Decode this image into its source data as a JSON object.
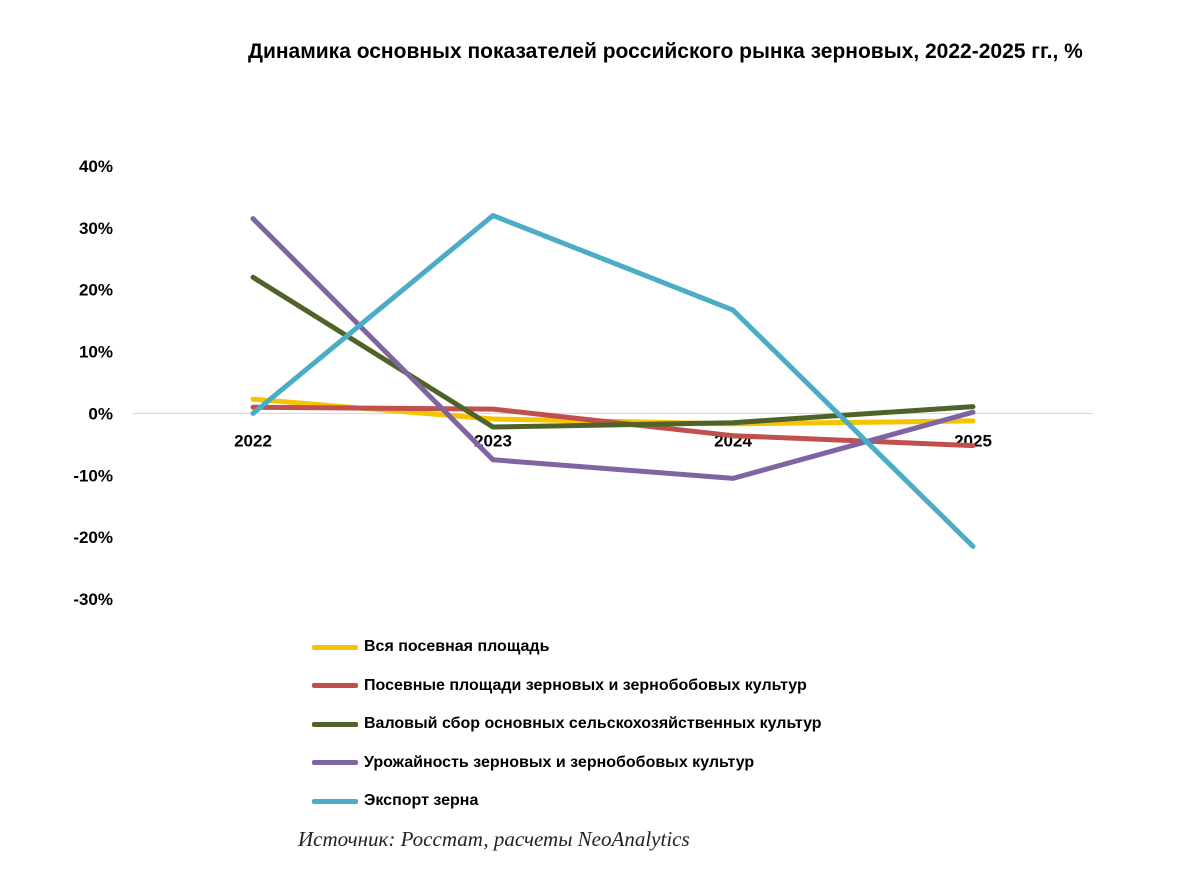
{
  "chart_data": {
    "type": "line",
    "title": "Динамика основных показателей российского рынка зерновых, 2022-2025 гг., %",
    "x": [
      "2022",
      "2023",
      "2024",
      "2025"
    ],
    "ylim": [
      -30,
      40
    ],
    "y_ticks": [
      40,
      30,
      20,
      10,
      0,
      -10,
      -20,
      -30
    ],
    "y_tick_labels": [
      "40%",
      "30%",
      "20%",
      "10%",
      "0%",
      "-10%",
      "-20%",
      "-30%"
    ],
    "grid": false,
    "legend_position": "bottom",
    "series": [
      {
        "name": "Вся посевная площадь",
        "color": "#F5C400",
        "values": [
          2.3,
          -0.9,
          -1.7,
          -1.2
        ]
      },
      {
        "name": "Посевные площади зерновых и зернобобовых культур",
        "color": "#C0504D",
        "values": [
          1.0,
          0.7,
          -3.6,
          -5.2
        ]
      },
      {
        "name": "Валовый сбор основных сельскохозяйственных культур",
        "color": "#4F6228",
        "values": [
          22.0,
          -2.2,
          -1.5,
          1.1
        ]
      },
      {
        "name": "Урожайность зерновых и зернобобовых культур",
        "color": "#8064A2",
        "values": [
          31.5,
          -7.5,
          -10.5,
          0.2
        ]
      },
      {
        "name": "Экспорт зерна",
        "color": "#4BACC6",
        "values": [
          0.0,
          32.0,
          16.7,
          -21.5
        ]
      }
    ]
  },
  "source_note": "Источник: Росстат, расчеты NeoAnalytics"
}
